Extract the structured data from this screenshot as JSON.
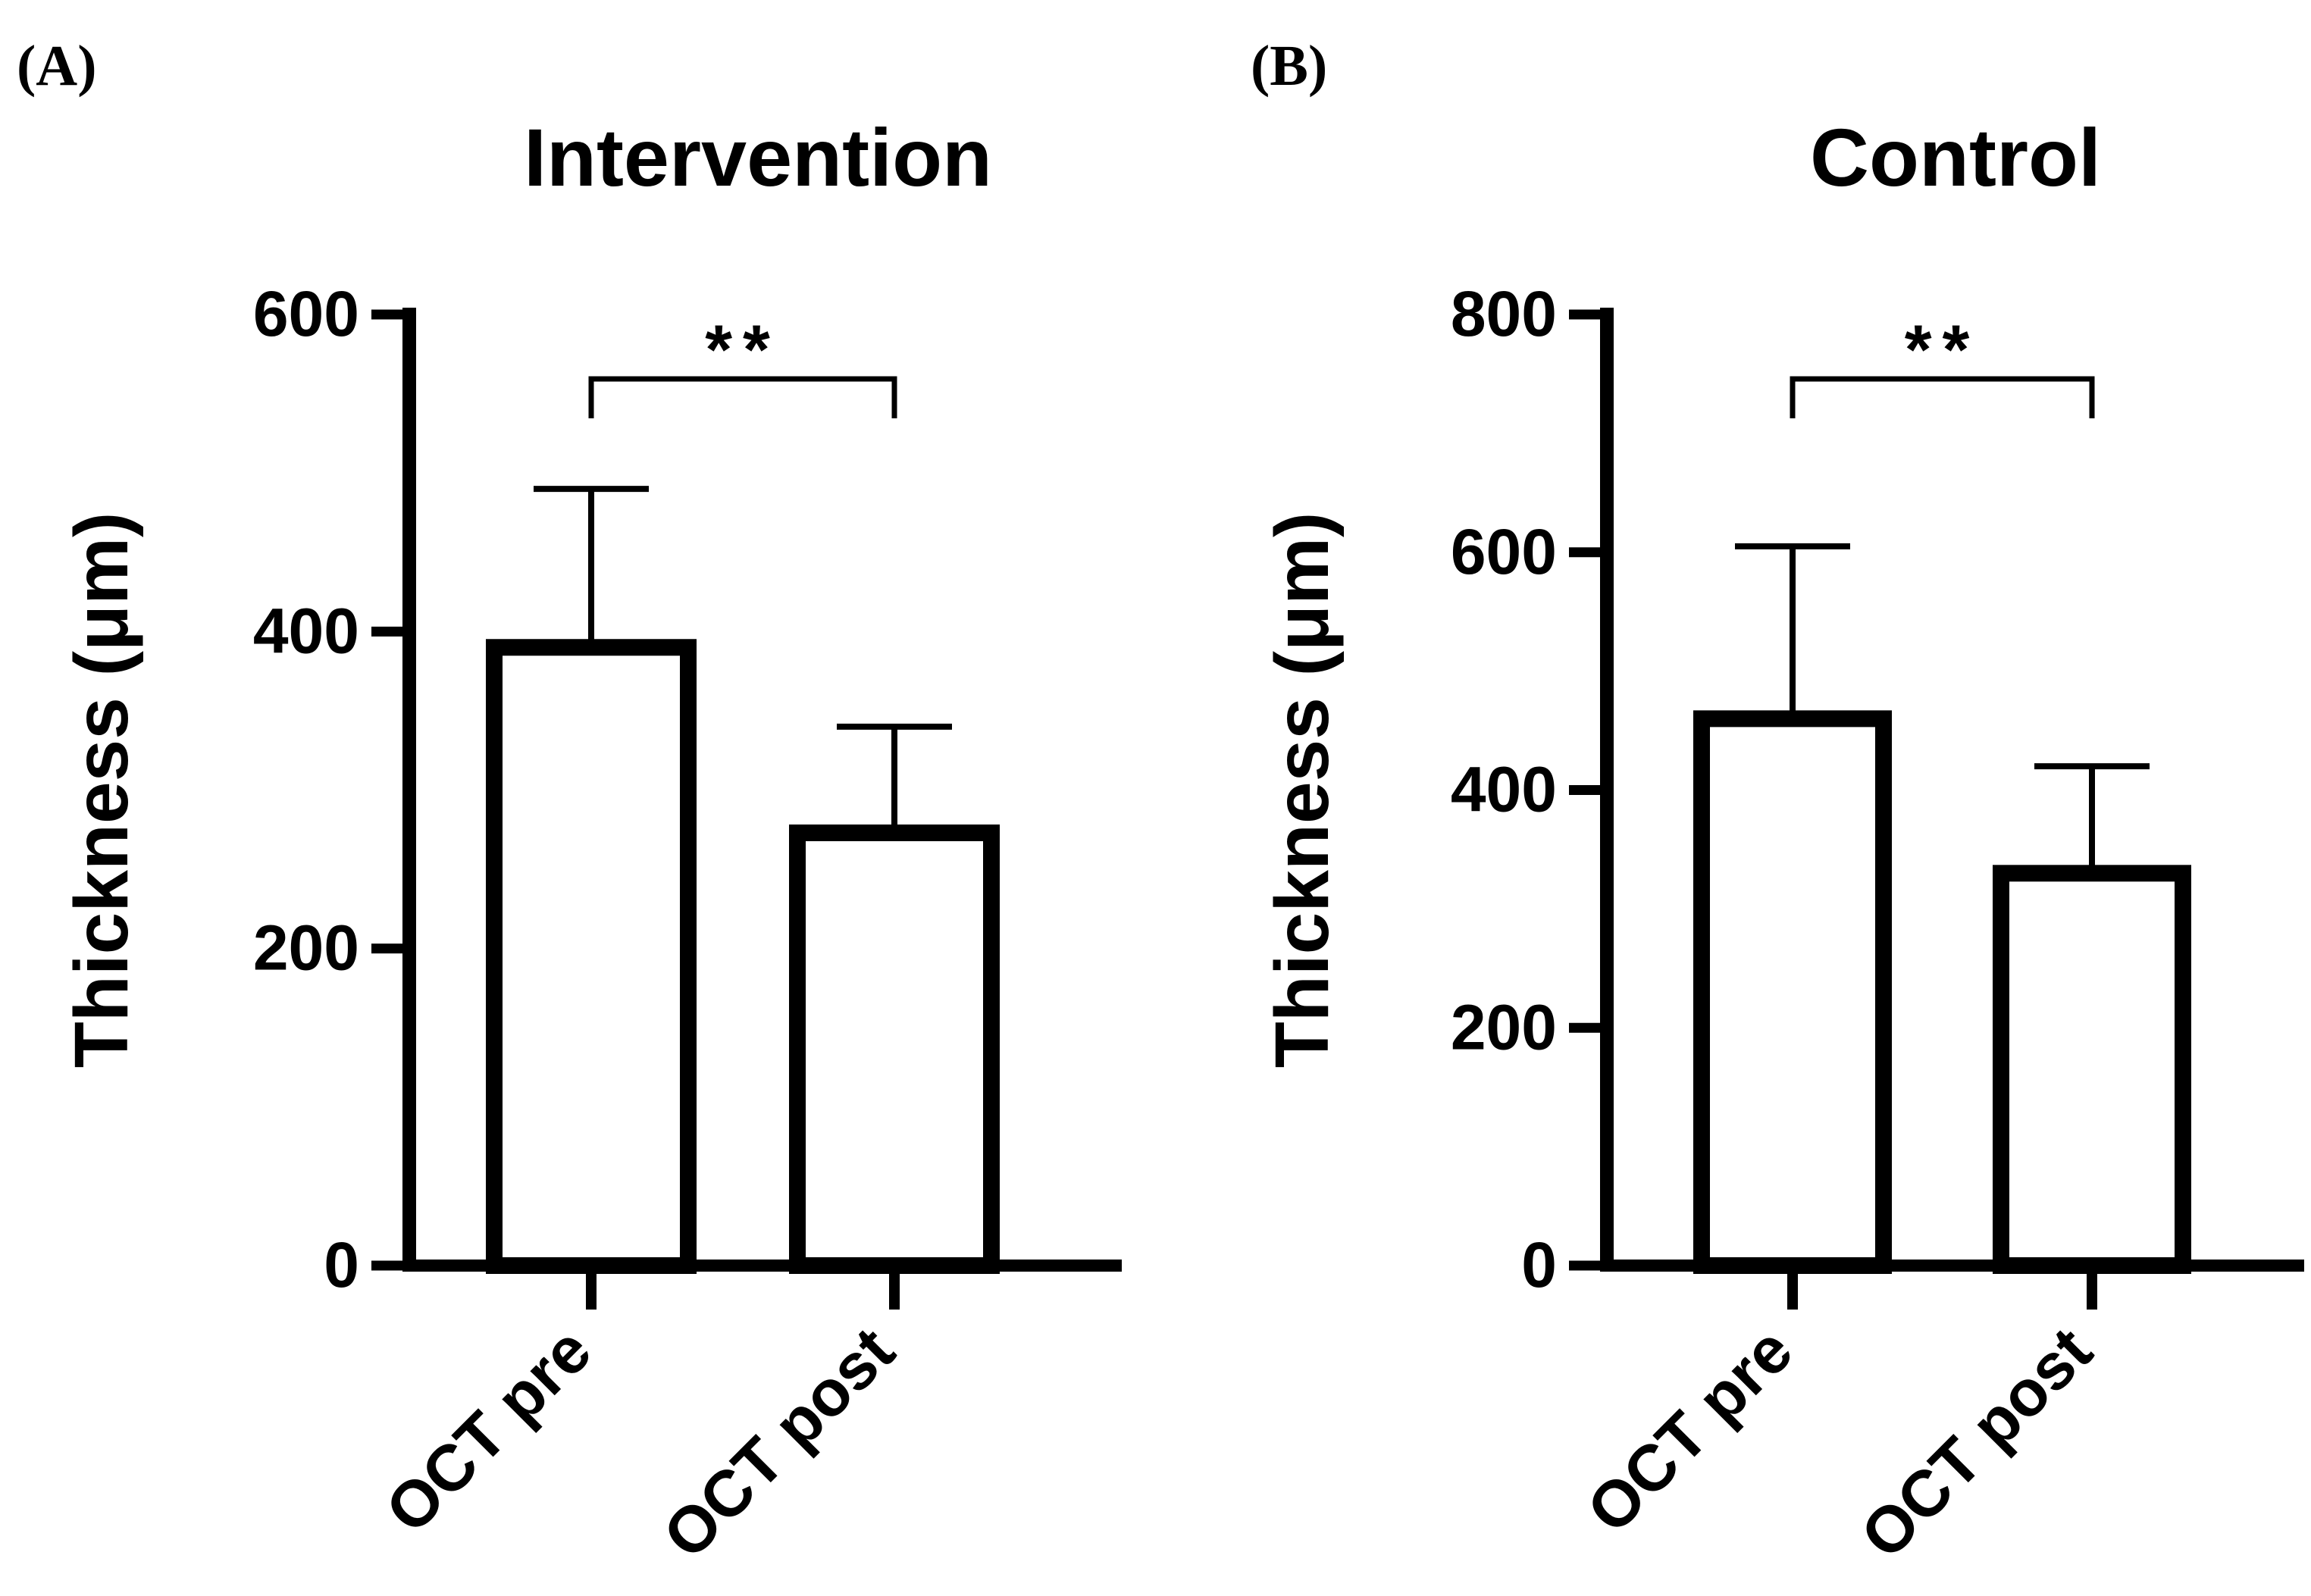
{
  "figure": {
    "background_color": "#ffffff",
    "ink_color": "#000000"
  },
  "chart_data": [
    {
      "type": "bar",
      "panel_label": "(A)",
      "title": "Intervention",
      "categories": [
        "OCT pre",
        "OCT post"
      ],
      "series": [
        {
          "name": "Thickness",
          "values": [
            390,
            273
          ]
        }
      ],
      "error_bar_tops": [
        490,
        340
      ],
      "xlabel": "",
      "ylabel": "Thickness (μm)",
      "ylim": [
        0,
        600
      ],
      "yticks": [
        600,
        400,
        200,
        0
      ],
      "grid": "off",
      "legend": "none",
      "bar_fill": "#ffffff",
      "bar_stroke": "#000000",
      "significance": {
        "between": [
          "OCT pre",
          "OCT post"
        ],
        "label": "**"
      }
    },
    {
      "type": "bar",
      "panel_label": "(B)",
      "title": "Control",
      "categories": [
        "OCT pre",
        "OCT post"
      ],
      "series": [
        {
          "name": "Thickness",
          "values": [
            460,
            330
          ]
        }
      ],
      "error_bar_tops": [
        605,
        420
      ],
      "xlabel": "",
      "ylabel": "Thickness (μm)",
      "ylim": [
        0,
        800
      ],
      "yticks": [
        800,
        600,
        400,
        200,
        0
      ],
      "grid": "off",
      "legend": "none",
      "bar_fill": "#ffffff",
      "bar_stroke": "#000000",
      "significance": {
        "between": [
          "OCT pre",
          "OCT post"
        ],
        "label": "**"
      }
    }
  ]
}
